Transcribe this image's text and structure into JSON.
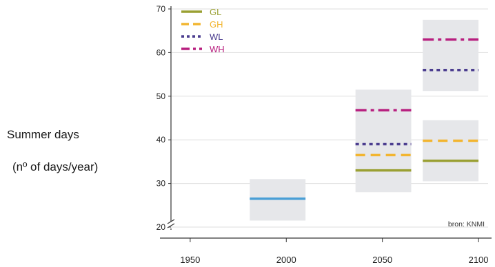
{
  "chart_data": {
    "type": "line",
    "ylabel_line1": "Summer days",
    "ylabel_line2": "(nº of days/year)",
    "xlim": [
      1940,
      2105
    ],
    "ylim": [
      20,
      70
    ],
    "xticks": [
      "1950",
      "2000",
      "2050",
      "2100"
    ],
    "yticks": [
      "20",
      "30",
      "40",
      "50",
      "60",
      "70"
    ],
    "grid": true,
    "legend_position": "top-left",
    "source": "bron: KNMI",
    "colors": {
      "GL": "#9aa033",
      "GH": "#f2b530",
      "WL": "#4b3d8f",
      "WH": "#b81f7f",
      "baseline": "#4a9fd6",
      "band": "#e6e7ea"
    },
    "series": [
      {
        "name": "GL",
        "style": "solid",
        "values": [
          {
            "x": 2050,
            "y": 33
          },
          {
            "x": 2100,
            "y": 35.2
          }
        ]
      },
      {
        "name": "GH",
        "style": "dashed",
        "values": [
          {
            "x": 2050,
            "y": 36.5
          },
          {
            "x": 2100,
            "y": 39.8
          }
        ]
      },
      {
        "name": "WL",
        "style": "dotted",
        "values": [
          {
            "x": 2050,
            "y": 39
          },
          {
            "x": 2100,
            "y": 56
          }
        ]
      },
      {
        "name": "WH",
        "style": "dashdot",
        "values": [
          {
            "x": 2050,
            "y": 46.8
          },
          {
            "x": 2100,
            "y": 63
          }
        ]
      }
    ],
    "baseline": {
      "x_range": [
        1981,
        2010
      ],
      "y": 26.5
    },
    "ranges": [
      {
        "x_range": [
          1981,
          2010
        ],
        "y_range": [
          21.5,
          31
        ]
      },
      {
        "x_range": [
          2036,
          2065
        ],
        "y_range": [
          28,
          51.5
        ]
      },
      {
        "x_range": [
          2071,
          2100
        ],
        "y_range": [
          30.5,
          44.5
        ]
      },
      {
        "x_range": [
          2071,
          2100
        ],
        "y_range": [
          51.2,
          67.5
        ]
      }
    ],
    "bars": [
      {
        "series": "GL",
        "x_range": [
          2036,
          2065
        ],
        "y": 33
      },
      {
        "series": "GH",
        "x_range": [
          2036,
          2065
        ],
        "y": 36.5
      },
      {
        "series": "WL",
        "x_range": [
          2036,
          2065
        ],
        "y": 39
      },
      {
        "series": "WH",
        "x_range": [
          2036,
          2065
        ],
        "y": 46.8
      },
      {
        "series": "GL",
        "x_range": [
          2071,
          2100
        ],
        "y": 35.2
      },
      {
        "series": "GH",
        "x_range": [
          2071,
          2100
        ],
        "y": 39.8
      },
      {
        "series": "WL",
        "x_range": [
          2071,
          2100
        ],
        "y": 56
      },
      {
        "series": "WH",
        "x_range": [
          2071,
          2100
        ],
        "y": 63
      }
    ]
  }
}
